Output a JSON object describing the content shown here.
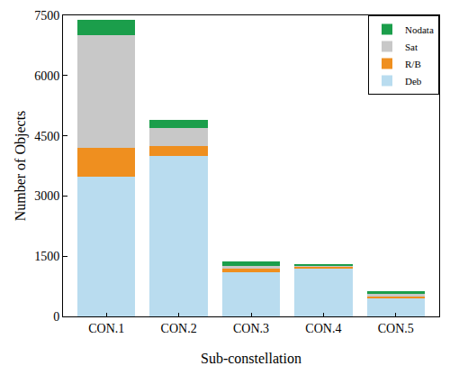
{
  "chart_data": {
    "type": "bar",
    "stacked": true,
    "x_label": "Sub-constellation",
    "y_label": "Number of Objects",
    "categories": [
      "CON.1",
      "CON.2",
      "CON.3",
      "CON.4",
      "CON.5"
    ],
    "series": [
      {
        "name": "Deb",
        "color": "#b9dcef",
        "values": [
          3480,
          4000,
          1100,
          1200,
          450
        ]
      },
      {
        "name": "R/B",
        "color": "#ef8f1f",
        "values": [
          730,
          250,
          80,
          40,
          40
        ]
      },
      {
        "name": "Sat",
        "color": "#c8c8c8",
        "values": [
          2790,
          450,
          80,
          30,
          80
        ]
      },
      {
        "name": "Nodata",
        "color": "#1b9e4b",
        "values": [
          380,
          200,
          100,
          40,
          60
        ]
      }
    ],
    "ylim": [
      0,
      7500
    ],
    "yticks": [
      0,
      1500,
      3000,
      4500,
      6000,
      7500
    ],
    "grid": false,
    "legend": "top right"
  }
}
